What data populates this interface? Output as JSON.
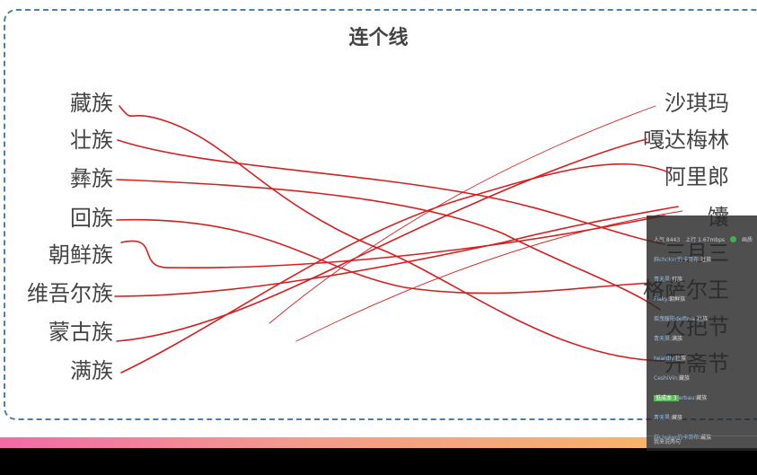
{
  "title": "连个线",
  "left_items": [
    "藏族",
    "壮族",
    "彝族",
    "回族",
    "朝鲜族",
    "维吾尔族",
    "蒙古族",
    "满族"
  ],
  "right_items": [
    "沙琪玛",
    "嘎达梅林",
    "阿里郎",
    "馕",
    "三月三",
    "格萨尔王",
    "火把节",
    "开斋节"
  ],
  "colors": {
    "line": "#d42020",
    "board_border": "#4a7fb0"
  },
  "chat": {
    "popularity": "人气 8443",
    "upload": "上行 1.67mbps",
    "status": "画质",
    "messages": [
      {
        "user": "斜choker的卡哥布:",
        "text": "壮族"
      },
      {
        "user": "青天昊:",
        "text": "打族"
      },
      {
        "user": "Flaky:",
        "text": "朝鲜族"
      },
      {
        "user": "摇曳暖阳delfinia:",
        "text": "壮族"
      },
      {
        "user": "青天昊:",
        "text": "满族"
      },
      {
        "user": "heardly:",
        "text": "壮族"
      },
      {
        "user": "CeshiVin:",
        "text": "藏族"
      },
      {
        "badge": "低成本 3",
        "user": "erbau:",
        "text": "藏族"
      },
      {
        "user": "青天昊:",
        "text": "藏族"
      },
      {
        "user": "斜choker的卡哥布:",
        "text": "藏族"
      }
    ],
    "input_placeholder": "我来说两句"
  }
}
